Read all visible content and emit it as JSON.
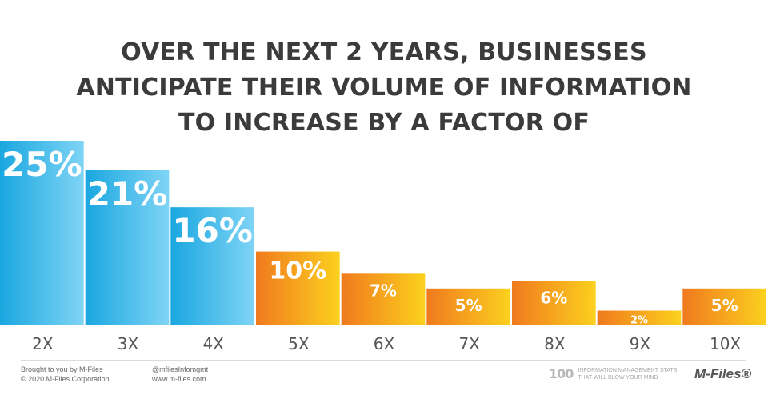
{
  "title_lines": [
    "OVER THE NEXT 2 YEARS, BUSINESSES",
    "ANTICIPATE THEIR VOLUME OF INFORMATION",
    "TO INCREASE BY A FACTOR OF"
  ],
  "chart_data": {
    "type": "bar",
    "title": "OVER THE NEXT 2 YEARS, BUSINESSES ANTICIPATE THEIR VOLUME OF INFORMATION TO INCREASE BY A FACTOR OF",
    "categories": [
      "2X",
      "3X",
      "4X",
      "5X",
      "6X",
      "7X",
      "8X",
      "9X",
      "10X"
    ],
    "values": [
      25,
      21,
      16,
      10,
      7,
      5,
      6,
      2,
      5
    ],
    "data_labels": [
      "25%",
      "21%",
      "16%",
      "10%",
      "7%",
      "5%",
      "6%",
      "2%",
      "5%"
    ],
    "unit": "%",
    "xlabel": "",
    "ylabel": "",
    "ylim": [
      0,
      25
    ],
    "colors": {
      "blue_start": "#1aa7e0",
      "blue_end": "#7fd4f5",
      "orange_start": "#f07a1e",
      "orange_end": "#fcd11e"
    },
    "blue_count": 3
  },
  "footer": {
    "left_line1": "Brought to you by M-Files",
    "left_line2": "© 2020 M-Files Corporation",
    "mid_line1": "@mfilesInfomgmt",
    "mid_line2": "www.m-files.com",
    "stats_mark": "100",
    "stats_line1": "INFORMATION MANAGEMENT STATS",
    "stats_line2": "THAT WILL BLOW YOUR MIND",
    "brand": "M-Files®"
  }
}
